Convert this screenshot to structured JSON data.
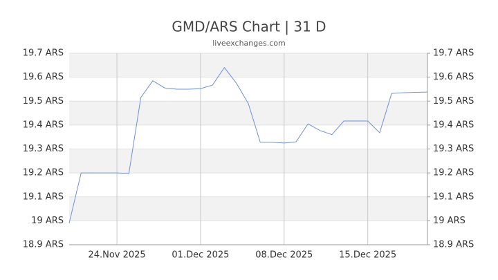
{
  "chart_data": {
    "type": "line",
    "title": "GMD/ARS Chart | 31 D",
    "subtitle": "liveexchanges.com",
    "x": [
      "2025-11-20",
      "2025-11-21",
      "2025-11-22",
      "2025-11-23",
      "2025-11-24",
      "2025-11-25",
      "2025-11-26",
      "2025-11-27",
      "2025-11-28",
      "2025-11-29",
      "2025-11-30",
      "2025-12-01",
      "2025-12-02",
      "2025-12-03",
      "2025-12-04",
      "2025-12-05",
      "2025-12-06",
      "2025-12-07",
      "2025-12-08",
      "2025-12-09",
      "2025-12-10",
      "2025-12-11",
      "2025-12-12",
      "2025-12-13",
      "2025-12-14",
      "2025-12-15",
      "2025-12-16",
      "2025-12-17",
      "2025-12-18",
      "2025-12-19",
      "2025-12-20"
    ],
    "series": [
      {
        "name": "GMD/ARS",
        "color": "#6f8fd8",
        "values": [
          18.99,
          19.2,
          19.2,
          19.2,
          19.2,
          19.198,
          19.515,
          19.585,
          19.555,
          19.55,
          19.55,
          19.552,
          19.567,
          19.64,
          19.575,
          19.49,
          19.328,
          19.328,
          19.325,
          19.33,
          19.405,
          19.377,
          19.36,
          19.417,
          19.417,
          19.417,
          19.368,
          19.532,
          19.535,
          19.537,
          19.538
        ]
      }
    ],
    "xlim": [
      "2025-11-20",
      "2025-12-20"
    ],
    "xticks": [
      {
        "value": "2025-11-24",
        "label": "24.Nov 2025"
      },
      {
        "value": "2025-12-01",
        "label": "01.Dec 2025"
      },
      {
        "value": "2025-12-08",
        "label": "08.Dec 2025"
      },
      {
        "value": "2025-12-15",
        "label": "15.Dec 2025"
      }
    ],
    "ylim": [
      18.9,
      19.7
    ],
    "yticks": [
      {
        "value": 18.9,
        "label": "18.9 ARS"
      },
      {
        "value": 19,
        "label": "19 ARS"
      },
      {
        "value": 19.1,
        "label": "19.1 ARS"
      },
      {
        "value": 19.2,
        "label": "19.2 ARS"
      },
      {
        "value": 19.3,
        "label": "19.3 ARS"
      },
      {
        "value": 19.4,
        "label": "19.4 ARS"
      },
      {
        "value": 19.5,
        "label": "19.5 ARS"
      },
      {
        "value": 19.6,
        "label": "19.6 ARS"
      },
      {
        "value": 19.7,
        "label": "19.7 ARS"
      }
    ],
    "y2lim": [
      18.9,
      19.7
    ],
    "y2ticks": [
      {
        "value": 18.9,
        "label": "18.9 ARS"
      },
      {
        "value": 19,
        "label": "19 ARS"
      },
      {
        "value": 19.1,
        "label": "19.1 ARS"
      },
      {
        "value": 19.2,
        "label": "19.2 ARS"
      },
      {
        "value": 19.3,
        "label": "19.3 ARS"
      },
      {
        "value": 19.4,
        "label": "19.4 ARS"
      },
      {
        "value": 19.5,
        "label": "19.5 ARS"
      },
      {
        "value": 19.6,
        "label": "19.6 ARS"
      },
      {
        "value": 19.7,
        "label": "19.7 ARS"
      }
    ],
    "grid": true
  }
}
